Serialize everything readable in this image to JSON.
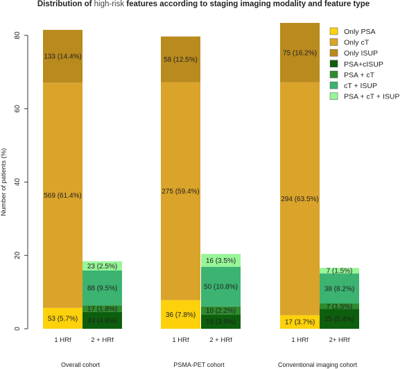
{
  "title_parts": {
    "before": "Distribution of ",
    "highlight": "high-risk",
    "after": " features according to staging imaging modality and feature type"
  },
  "chart_data": {
    "type": "bar",
    "stacked": true,
    "title": "Distribution of high-risk features according to staging imaging modality and feature type",
    "xlabel": "",
    "ylabel": "Number of patients (%)",
    "ylim": [
      0,
      85
    ],
    "yticks": [
      0,
      20,
      40,
      60,
      80
    ],
    "grid": false,
    "legend_position": "top-right",
    "colors": {
      "Only PSA": "#FDD10C",
      "Only cT": "#DAA32A",
      "Only ISUP": "#B98A1E",
      "PSA+cISUP": "#0D5F0D",
      "PSA + cT": "#2E8B2E",
      "cT + ISUP": "#3CB371",
      "PSA + cT + ISUP": "#98F598"
    },
    "legend": [
      "Only PSA",
      "Only cT",
      "Only ISUP",
      "PSA+cISUP",
      "PSA + cT",
      "cT + ISUP",
      "PSA + cT + ISUP"
    ],
    "groups": [
      {
        "name": "Overall cohort",
        "bars": [
          {
            "label": "1 HRf",
            "segments": [
              {
                "series": "Only PSA",
                "value": 5.7,
                "label": "53 (5.7%)"
              },
              {
                "series": "Only cT",
                "value": 61.4,
                "label": "569 (61.4%)"
              },
              {
                "series": "Only ISUP",
                "value": 14.4,
                "label": "133 (14.4%)"
              }
            ]
          },
          {
            "label": "2 + HRf",
            "segments": [
              {
                "series": "PSA+cISUP",
                "value": 4.6,
                "label": "43 (4.6%)"
              },
              {
                "series": "PSA + cT",
                "value": 1.8,
                "label": "17 (1.8%)"
              },
              {
                "series": "cT + ISUP",
                "value": 9.5,
                "label": "88 (9.5%)"
              },
              {
                "series": "PSA + cT + ISUP",
                "value": 2.5,
                "label": "23 (2.5%)"
              }
            ]
          }
        ]
      },
      {
        "name": "PSMA-PET cohort",
        "bars": [
          {
            "label": "1 HRf",
            "segments": [
              {
                "series": "Only PSA",
                "value": 7.8,
                "label": "36 (7.8%)"
              },
              {
                "series": "Only cT",
                "value": 59.4,
                "label": "275 (59.4%)"
              },
              {
                "series": "Only ISUP",
                "value": 12.5,
                "label": "58 (12.5%)"
              }
            ]
          },
          {
            "label": "2 + HRf",
            "segments": [
              {
                "series": "PSA+cISUP",
                "value": 3.9,
                "label": "18 (3.9%)"
              },
              {
                "series": "PSA + cT",
                "value": 2.2,
                "label": "10 (2.2%)"
              },
              {
                "series": "cT + ISUP",
                "value": 10.8,
                "label": "50 (10.8%)"
              },
              {
                "series": "PSA + cT + ISUP",
                "value": 3.5,
                "label": "16 (3.5%)"
              }
            ]
          }
        ]
      },
      {
        "name": "Conventional imaging cohort",
        "bars": [
          {
            "label": "1 HRf",
            "segments": [
              {
                "series": "Only PSA",
                "value": 3.7,
                "label": "17 (3.7%)"
              },
              {
                "series": "Only cT",
                "value": 63.5,
                "label": "294 (63.5%)"
              },
              {
                "series": "Only ISUP",
                "value": 16.2,
                "label": "75 (16.2%)"
              }
            ]
          },
          {
            "label": "2+ HRf",
            "segments": [
              {
                "series": "PSA+cISUP",
                "value": 5.4,
                "label": "25 (5.4%)"
              },
              {
                "series": "PSA + cT",
                "value": 1.5,
                "label": "7 (1.5%)"
              },
              {
                "series": "cT + ISUP",
                "value": 8.2,
                "label": "38 (8.2%)"
              },
              {
                "series": "PSA + cT + ISUP",
                "value": 1.5,
                "label": "7 (1.5%)"
              }
            ]
          }
        ]
      }
    ]
  }
}
